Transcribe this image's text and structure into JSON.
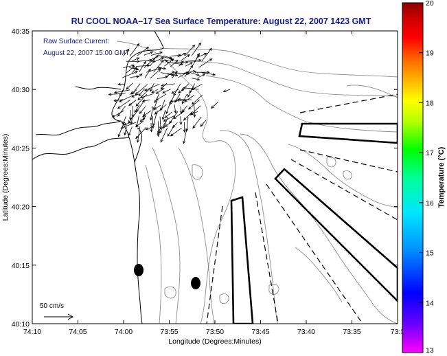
{
  "title": "RU COOL  NOAA–17  Sea Surface Temperature:  August 22, 2007 1423 GMT",
  "legend": {
    "line1": "Raw Surface Current:",
    "line2": "August 22, 2007 15:00 GMT"
  },
  "axes": {
    "xlabel": "Longitude (Degrees:Minutes)",
    "ylabel": "Latitude (Degrees:Minutes)",
    "x_ticks": [
      "74:10",
      "74:05",
      "74:00",
      "73:55",
      "73:50",
      "73:45",
      "73:40",
      "73:35",
      "73:3"
    ],
    "y_ticks": [
      "40:35",
      "40:30",
      "40:25",
      "40:20",
      "40:15",
      "40:10"
    ]
  },
  "colorbar": {
    "label": "Temperature (°C)",
    "ticks": [
      "20",
      "19",
      "18",
      "17",
      "16",
      "15",
      "14",
      "13"
    ],
    "min": 13,
    "max": 20,
    "colors": [
      "#ff00ff",
      "#6a00ff",
      "#0000ff",
      "#0096ff",
      "#00e6ff",
      "#00ff96",
      "#00ff00",
      "#b4ff00",
      "#ffff00",
      "#ffb400",
      "#ff6400",
      "#ff0000",
      "#c80000",
      "#8a0000"
    ]
  },
  "scale": {
    "label": "50 cm/s"
  },
  "map": {
    "coast_color": "#000000",
    "contour_color": "#8c8c8c",
    "vector_color": "#000000"
  }
}
